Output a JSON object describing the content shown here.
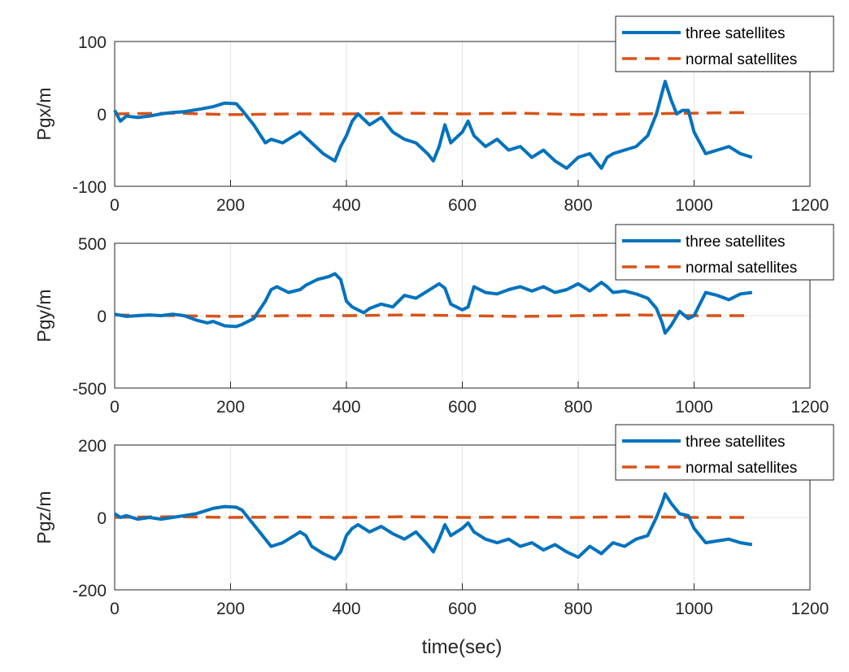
{
  "figure": {
    "xlabel": "time(sec)"
  },
  "colors": {
    "series_1": "#0072BD",
    "series_2": "#D95319"
  },
  "chart_data": [
    {
      "type": "line",
      "title": "",
      "ylabel": "Pgx/m",
      "xlabel": "",
      "xlim": [
        0,
        1200
      ],
      "ylim": [
        -100,
        100
      ],
      "xticks": [
        "0",
        "200",
        "400",
        "600",
        "800",
        "1000",
        "1200"
      ],
      "yticks": [
        "-100",
        "0",
        "100"
      ],
      "grid": true,
      "legend_position": "top-right",
      "series": [
        {
          "name": "three satellites",
          "style": "solid",
          "x": [
            0,
            10,
            20,
            40,
            60,
            80,
            100,
            120,
            150,
            170,
            190,
            210,
            220,
            240,
            260,
            270,
            290,
            310,
            320,
            340,
            360,
            380,
            390,
            400,
            410,
            420,
            440,
            460,
            480,
            500,
            520,
            540,
            550,
            560,
            570,
            580,
            600,
            610,
            620,
            640,
            660,
            680,
            700,
            720,
            740,
            760,
            780,
            800,
            820,
            840,
            850,
            860,
            880,
            900,
            920,
            935,
            945,
            950,
            960,
            970,
            980,
            990,
            1000,
            1010,
            1020,
            1040,
            1060,
            1080,
            1100
          ],
          "values": [
            5,
            -10,
            -3,
            -5,
            -3,
            0,
            2,
            3,
            7,
            10,
            15,
            14,
            5,
            -15,
            -40,
            -35,
            -40,
            -30,
            -25,
            -40,
            -55,
            -65,
            -45,
            -30,
            -10,
            0,
            -15,
            -5,
            -25,
            -35,
            -40,
            -55,
            -65,
            -45,
            -15,
            -40,
            -25,
            -10,
            -30,
            -45,
            -35,
            -50,
            -45,
            -60,
            -50,
            -65,
            -75,
            -60,
            -55,
            -75,
            -60,
            -55,
            -50,
            -45,
            -30,
            0,
            30,
            45,
            20,
            0,
            5,
            5,
            -25,
            -40,
            -55,
            -50,
            -45,
            -55,
            -60
          ]
        },
        {
          "name": "normal satellites",
          "style": "dashed",
          "x": [
            0,
            100,
            200,
            300,
            400,
            500,
            600,
            700,
            800,
            900,
            1000,
            1100
          ],
          "values": [
            0,
            1,
            -1,
            0,
            0,
            1,
            0,
            1,
            -1,
            0,
            1,
            2
          ]
        }
      ]
    },
    {
      "type": "line",
      "title": "",
      "ylabel": "Pgy/m",
      "xlabel": "",
      "xlim": [
        0,
        1200
      ],
      "ylim": [
        -500,
        500
      ],
      "xticks": [
        "0",
        "200",
        "400",
        "600",
        "800",
        "1000",
        "1200"
      ],
      "yticks": [
        "-500",
        "0",
        "500"
      ],
      "grid": true,
      "legend_position": "top-right",
      "series": [
        {
          "name": "three satellites",
          "style": "solid",
          "x": [
            0,
            20,
            40,
            60,
            80,
            100,
            120,
            140,
            160,
            170,
            190,
            210,
            220,
            240,
            260,
            270,
            280,
            300,
            320,
            330,
            350,
            370,
            380,
            390,
            400,
            410,
            420,
            430,
            440,
            460,
            480,
            500,
            520,
            540,
            560,
            570,
            580,
            590,
            600,
            610,
            620,
            640,
            660,
            680,
            700,
            720,
            740,
            760,
            780,
            800,
            820,
            840,
            850,
            860,
            880,
            900,
            920,
            935,
            945,
            950,
            960,
            975,
            990,
            1000,
            1010,
            1020,
            1040,
            1060,
            1080,
            1100
          ],
          "values": [
            10,
            -5,
            0,
            5,
            0,
            10,
            0,
            -30,
            -50,
            -40,
            -70,
            -75,
            -60,
            -20,
            100,
            180,
            200,
            160,
            180,
            210,
            250,
            270,
            290,
            250,
            100,
            60,
            40,
            20,
            50,
            80,
            60,
            140,
            120,
            170,
            220,
            190,
            80,
            60,
            40,
            60,
            200,
            160,
            150,
            180,
            200,
            170,
            200,
            160,
            180,
            220,
            170,
            230,
            200,
            160,
            170,
            150,
            120,
            50,
            -50,
            -120,
            -70,
            30,
            -20,
            0,
            80,
            160,
            140,
            110,
            150,
            160
          ]
        },
        {
          "name": "normal satellites",
          "style": "dashed",
          "x": [
            0,
            100,
            200,
            300,
            400,
            500,
            600,
            700,
            800,
            900,
            1000,
            1100
          ],
          "values": [
            5,
            0,
            -5,
            0,
            0,
            5,
            0,
            -5,
            0,
            5,
            0,
            0
          ]
        }
      ]
    },
    {
      "type": "line",
      "title": "",
      "ylabel": "Pgz/m",
      "xlabel": "time(sec)",
      "xlim": [
        0,
        1200
      ],
      "ylim": [
        -200,
        200
      ],
      "xticks": [
        "0",
        "200",
        "400",
        "600",
        "800",
        "1000",
        "1200"
      ],
      "yticks": [
        "-200",
        "0",
        "200"
      ],
      "grid": true,
      "legend_position": "top-right",
      "series": [
        {
          "name": "three satellites",
          "style": "solid",
          "x": [
            0,
            10,
            20,
            40,
            60,
            80,
            100,
            120,
            140,
            160,
            170,
            190,
            210,
            220,
            240,
            260,
            270,
            290,
            310,
            320,
            330,
            340,
            360,
            380,
            390,
            400,
            410,
            420,
            440,
            460,
            480,
            500,
            520,
            540,
            550,
            560,
            570,
            580,
            600,
            610,
            620,
            640,
            660,
            680,
            700,
            720,
            740,
            760,
            780,
            800,
            820,
            840,
            850,
            860,
            880,
            900,
            920,
            935,
            945,
            950,
            960,
            975,
            990,
            1000,
            1010,
            1020,
            1040,
            1060,
            1080,
            1100
          ],
          "values": [
            10,
            0,
            5,
            -5,
            0,
            -5,
            0,
            5,
            10,
            20,
            25,
            30,
            28,
            20,
            -20,
            -60,
            -80,
            -70,
            -50,
            -40,
            -50,
            -80,
            -100,
            -115,
            -95,
            -50,
            -30,
            -20,
            -40,
            -25,
            -45,
            -60,
            -40,
            -75,
            -95,
            -60,
            -20,
            -50,
            -30,
            -15,
            -40,
            -60,
            -70,
            -60,
            -80,
            -70,
            -90,
            -75,
            -95,
            -110,
            -80,
            -100,
            -85,
            -70,
            -80,
            -60,
            -50,
            0,
            40,
            65,
            40,
            10,
            5,
            -30,
            -50,
            -70,
            -65,
            -60,
            -70,
            -75
          ]
        },
        {
          "name": "normal satellites",
          "style": "dashed",
          "x": [
            0,
            100,
            200,
            300,
            400,
            500,
            600,
            700,
            800,
            900,
            1000,
            1100
          ],
          "values": [
            0,
            2,
            0,
            1,
            0,
            2,
            0,
            1,
            0,
            2,
            0,
            0
          ]
        }
      ]
    }
  ]
}
